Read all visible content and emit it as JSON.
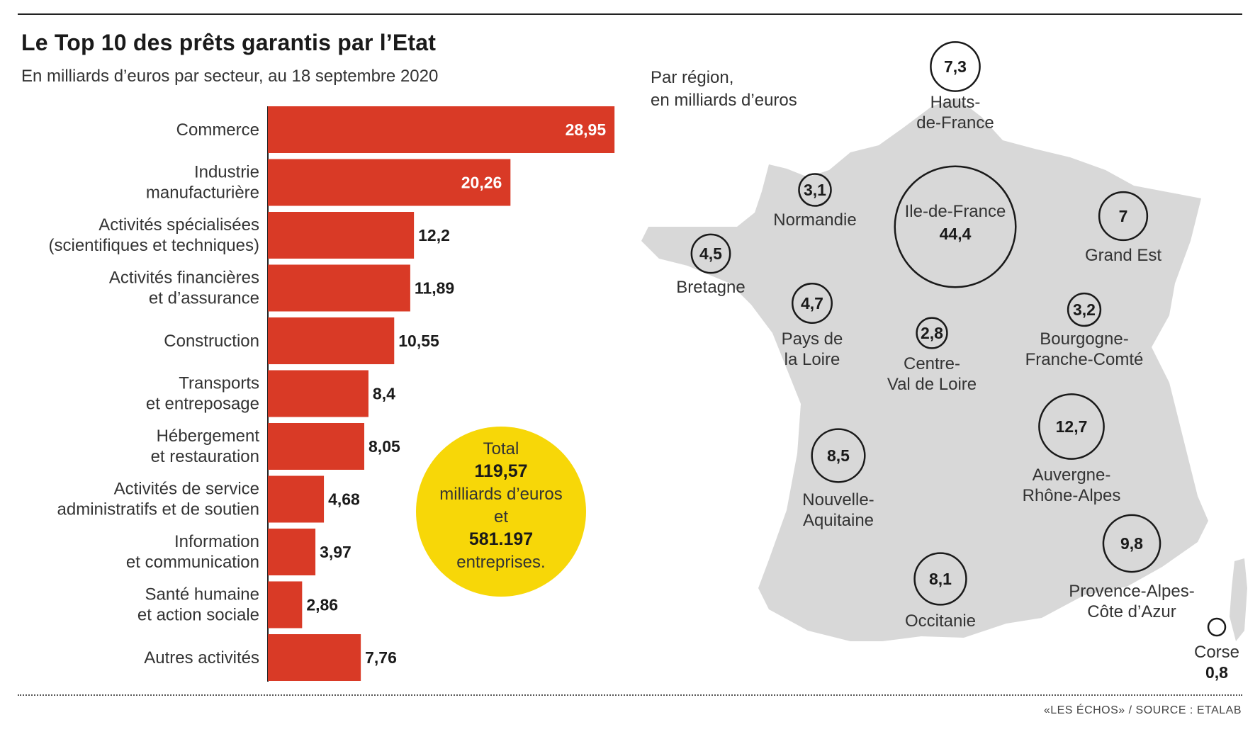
{
  "header": {
    "title": "Le Top 10 des prêts garantis par l’Etat",
    "subtitle": "En milliards d’euros par secteur, au 18 septembre 2020",
    "map_caption_line1": "Par région,",
    "map_caption_line2": "en milliards d’euros"
  },
  "footer": {
    "source": "«LES ÉCHOS» / SOURCE : ETALAB"
  },
  "total_bubble": {
    "line1": "Total",
    "line2": "119,57",
    "line3": "milliards d’euros",
    "line4": "et",
    "line5": "581.197",
    "line6": "entreprises."
  },
  "colors": {
    "bar": "#d93a26",
    "bubble": "#f7d708",
    "map": "#d8d8d8",
    "border": "#ffffff",
    "circle_stroke": "#1a1a1a"
  },
  "chart_data": [
    {
      "type": "bar",
      "orientation": "horizontal",
      "title": "Le Top 10 des prêts garantis par l’Etat",
      "subtitle": "En milliards d’euros par secteur, au 18 septembre 2020",
      "categories": [
        [
          "Commerce"
        ],
        [
          "Industrie",
          "manufacturière"
        ],
        [
          "Activités spécialisées",
          "(scientifiques et techniques)"
        ],
        [
          "Activités financières",
          "et d’assurance"
        ],
        [
          "Construction"
        ],
        [
          "Transports",
          "et entreposage"
        ],
        [
          "Hébergement",
          "et restauration"
        ],
        [
          "Activités de service",
          "administratifs et de soutien"
        ],
        [
          "Information",
          "et communication"
        ],
        [
          "Santé humaine",
          "et action sociale"
        ],
        [
          "Autres activités"
        ]
      ],
      "values": [
        28.95,
        20.26,
        12.2,
        11.89,
        10.55,
        8.4,
        8.05,
        4.68,
        3.97,
        2.86,
        7.76
      ],
      "value_labels": [
        "28,95",
        "20,26",
        "12,2",
        "11,89",
        "10,55",
        "8,4",
        "8,05",
        "4,68",
        "3,97",
        "2,86",
        "7,76"
      ],
      "xlim": [
        0,
        29
      ]
    },
    {
      "type": "bubble-map",
      "caption": "Par région, en milliards d’euros",
      "regions": [
        {
          "name": [
            "Hauts-",
            "de-France"
          ],
          "value": 7.3,
          "label": "7,3"
        },
        {
          "name": [
            "Normandie"
          ],
          "value": 3.1,
          "label": "3,1"
        },
        {
          "name": [
            "Ile-de-France"
          ],
          "value": 44.4,
          "label": "44,4"
        },
        {
          "name": [
            "Grand Est"
          ],
          "value": 7,
          "label": "7"
        },
        {
          "name": [
            "Bretagne"
          ],
          "value": 4.5,
          "label": "4,5"
        },
        {
          "name": [
            "Pays de",
            "la Loire"
          ],
          "value": 4.7,
          "label": "4,7"
        },
        {
          "name": [
            "Centre-",
            "Val de Loire"
          ],
          "value": 2.8,
          "label": "2,8"
        },
        {
          "name": [
            "Bourgogne-",
            "Franche-Comté"
          ],
          "value": 3.2,
          "label": "3,2"
        },
        {
          "name": [
            "Nouvelle-",
            "Aquitaine"
          ],
          "value": 8.5,
          "label": "8,5"
        },
        {
          "name": [
            "Auvergne-",
            "Rhône-Alpes"
          ],
          "value": 12.7,
          "label": "12,7"
        },
        {
          "name": [
            "Occitanie"
          ],
          "value": 8.1,
          "label": "8,1"
        },
        {
          "name": [
            "Provence-Alpes-",
            "Côte d’Azur"
          ],
          "value": 9.8,
          "label": "9,8"
        },
        {
          "name": [
            "Corse"
          ],
          "value": 0.8,
          "label": "0,8"
        }
      ]
    }
  ]
}
